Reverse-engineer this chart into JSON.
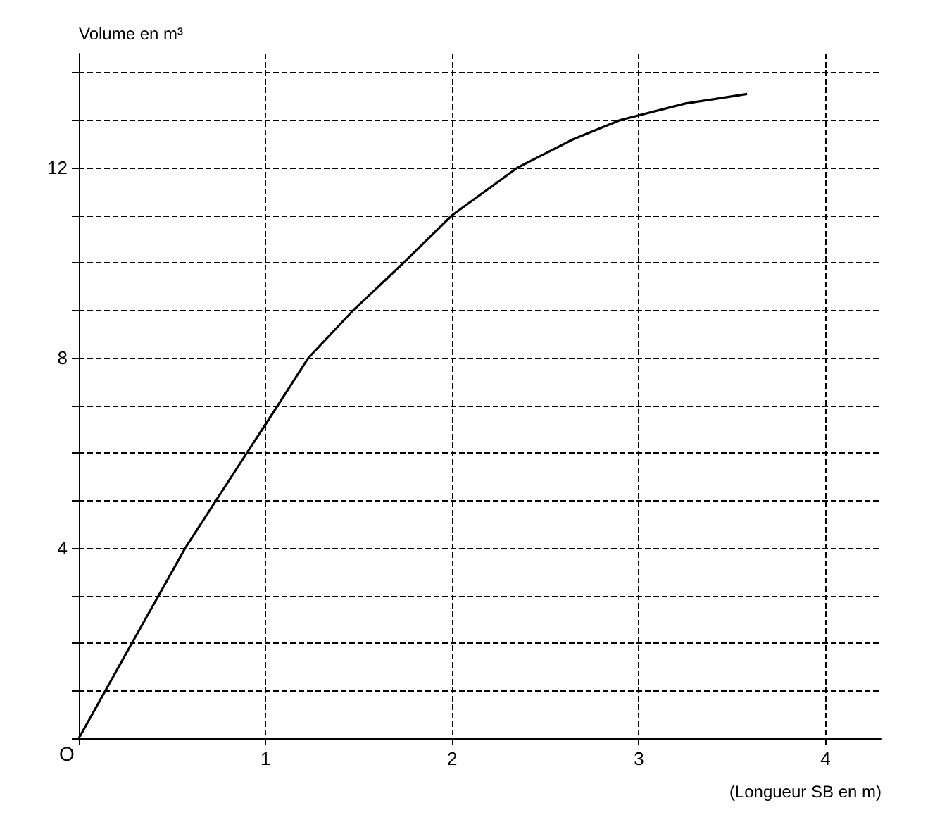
{
  "chart_data": {
    "type": "line",
    "xlabel": "(Longueur SB en m)",
    "ylabel": "Volume en m³",
    "x": [
      0,
      0.27,
      0.57,
      0.9,
      1.0,
      1.23,
      1.47,
      1.74,
      2.0,
      2.35,
      2.65,
      2.9,
      3.25,
      3.58
    ],
    "series": [
      {
        "color": "#000000",
        "values": [
          0,
          1.9,
          4,
          6,
          6.6,
          8,
          9,
          10,
          11,
          12,
          12.6,
          13,
          13.35,
          13.55
        ]
      }
    ],
    "xlim": [
      0,
      4.3
    ],
    "xticks": [
      {
        "value": 0,
        "label": null
      },
      1,
      2,
      3,
      4
    ],
    "ylim": [
      0,
      14.4
    ],
    "yticks": [
      {
        "value": 0,
        "label": null
      },
      {
        "value": 1,
        "label": null
      },
      {
        "value": 2,
        "label": null
      },
      {
        "value": 3,
        "label": null
      },
      4,
      {
        "value": 5,
        "label": null
      },
      {
        "value": 6,
        "label": null
      },
      {
        "value": 7,
        "label": null
      },
      8,
      {
        "value": 9,
        "label": null
      },
      {
        "value": 10,
        "label": null
      },
      {
        "value": 11,
        "label": null
      },
      12,
      {
        "value": 13,
        "label": null
      },
      {
        "value": 14,
        "label": null
      }
    ],
    "annotations": [
      "O"
    ],
    "grid": true,
    "marker": "none",
    "line_style": "solid"
  }
}
